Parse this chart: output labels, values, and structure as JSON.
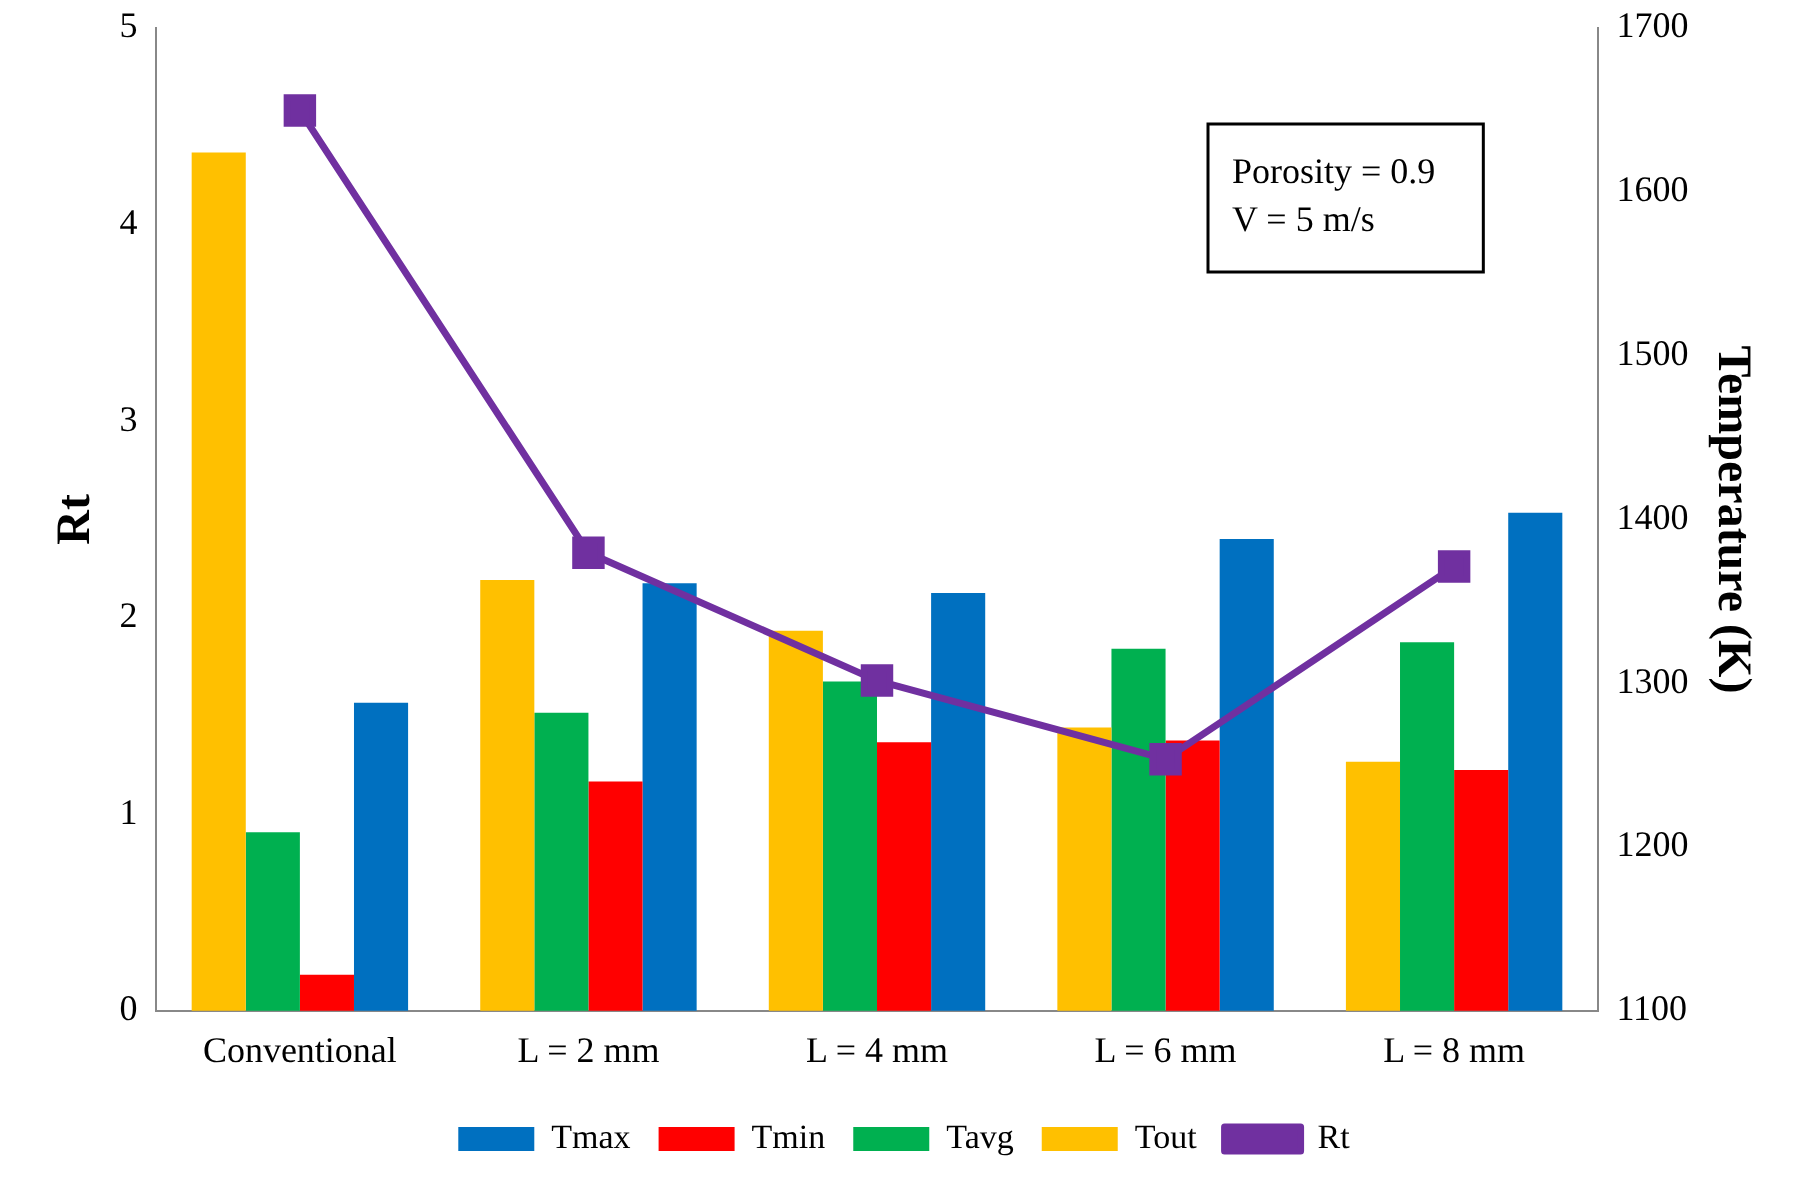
{
  "chart_data": {
    "type": "bar",
    "xlabel": null,
    "ylabel": "Rt",
    "y2label": "Temperature (K)",
    "categories": [
      "Conventional",
      "L = 2 mm",
      "L = 4 mm",
      "L = 6 mm",
      "L = 8 mm"
    ],
    "series": [
      {
        "name": "Tout",
        "color": "#ffc000",
        "axis": "y2",
        "values": [
          1624,
          1363,
          1332,
          1273,
          1252
        ]
      },
      {
        "name": "Tavg",
        "color": "#00b050",
        "axis": "y2",
        "values": [
          1209,
          1282,
          1301,
          1321,
          1325
        ]
      },
      {
        "name": "Tmin",
        "color": "#ff0000",
        "axis": "y2",
        "values": [
          1122,
          1240,
          1264,
          1265,
          1247
        ]
      },
      {
        "name": "Tmax",
        "color": "#0070c0",
        "axis": "y2",
        "values": [
          1288,
          1361,
          1355,
          1388,
          1404
        ]
      },
      {
        "name": "Rt",
        "type": "line",
        "color": "#7030a0",
        "marker": "square",
        "values": [
          4.58,
          2.33,
          1.68,
          1.28,
          2.26
        ]
      }
    ],
    "ylim": [
      0,
      5
    ],
    "yticks": [
      0,
      1,
      2,
      3,
      4,
      5
    ],
    "y2lim": [
      1100,
      1700
    ],
    "y2ticks": [
      1100,
      1200,
      1300,
      1400,
      1500,
      1600,
      1700
    ],
    "grid": false,
    "legend": "bottom",
    "annotations": [
      "Porosity = 0.9",
      "V = 5 m/s"
    ]
  }
}
